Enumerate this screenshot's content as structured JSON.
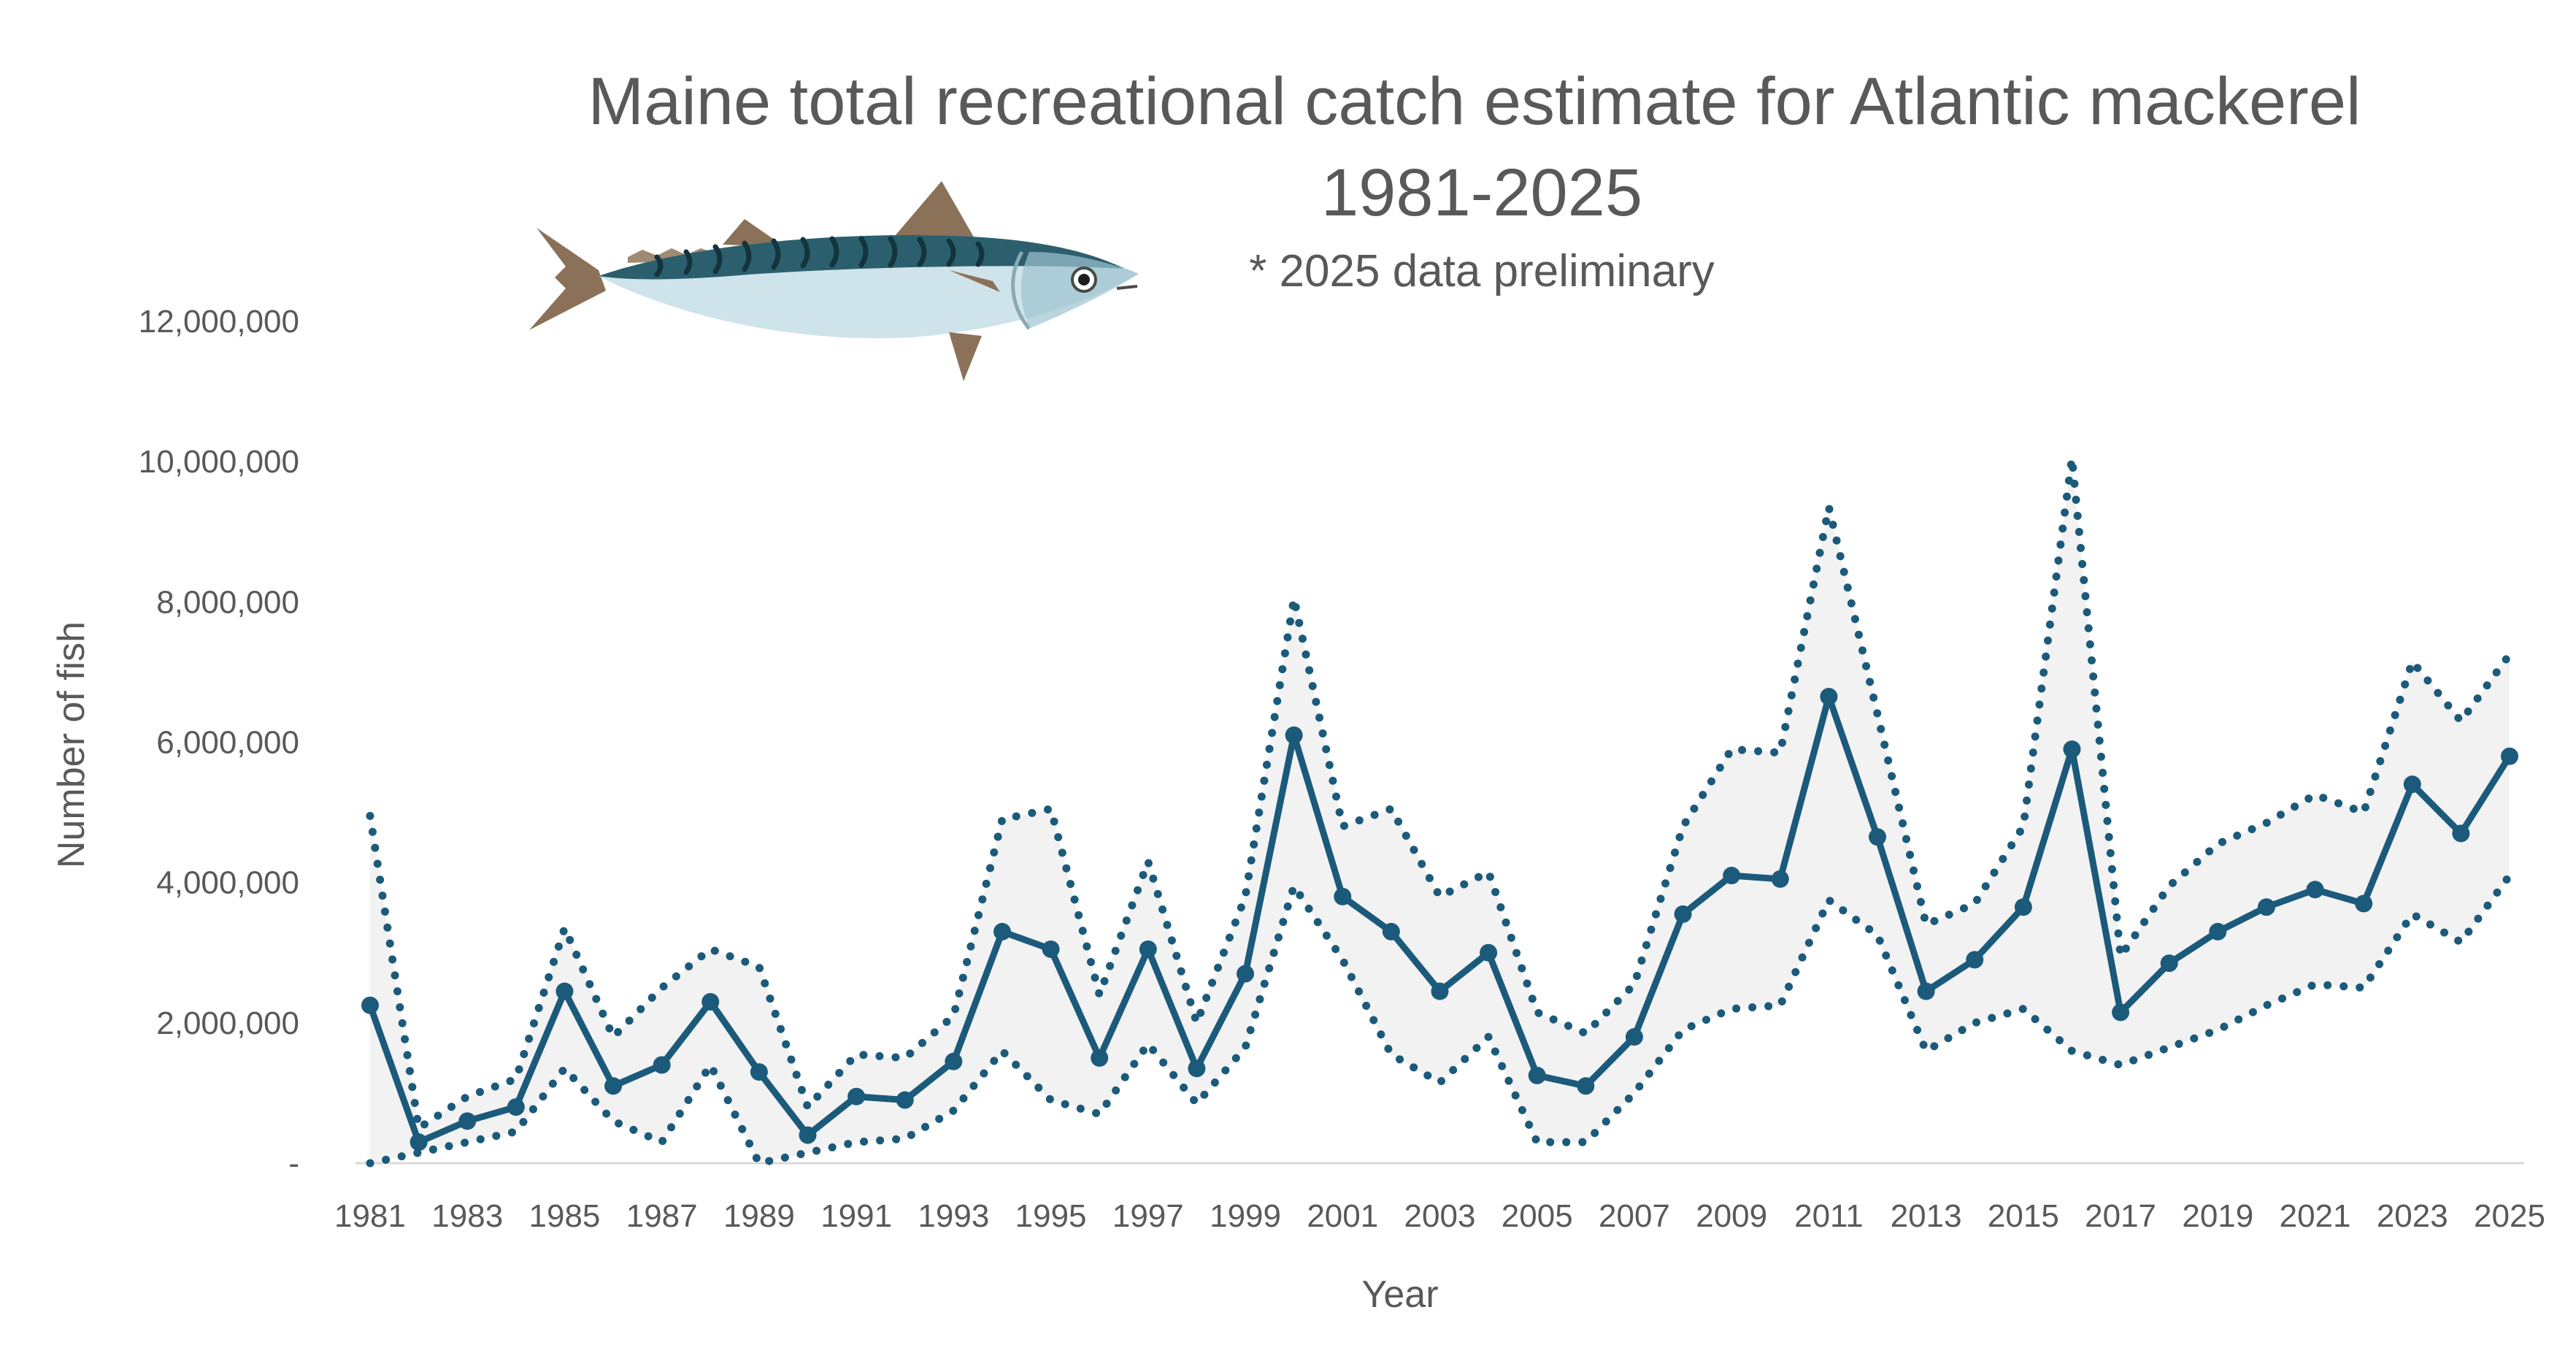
{
  "chart_data": {
    "type": "line",
    "title": "Maine total recreational catch estimate for Atlantic mackerel",
    "title_line2": "1981-2025",
    "subtitle": "* 2025 data preliminary",
    "xlabel": "Year",
    "ylabel": "Number of fish",
    "ylim": [
      0,
      12000000
    ],
    "y_ticks": [
      0,
      2000000,
      4000000,
      6000000,
      8000000,
      10000000,
      12000000
    ],
    "y_tick_labels": [
      "-",
      "2,000,000",
      "4,000,000",
      "6,000,000",
      "8,000,000",
      "10,000,000",
      "12,000,000"
    ],
    "x_tick_labels": [
      "1981",
      "1983",
      "1985",
      "1987",
      "1989",
      "1991",
      "1993",
      "1995",
      "1997",
      "1999",
      "2001",
      "2003",
      "2005",
      "2007",
      "2009",
      "2011",
      "2013",
      "2015",
      "2017",
      "2019",
      "2021",
      "2023",
      "2025"
    ],
    "legend": "none",
    "grid": false,
    "x": [
      1981,
      1982,
      1983,
      1984,
      1985,
      1986,
      1987,
      1988,
      1989,
      1990,
      1991,
      1992,
      1993,
      1994,
      1995,
      1996,
      1997,
      1998,
      1999,
      2000,
      2001,
      2002,
      2003,
      2004,
      2005,
      2006,
      2007,
      2008,
      2009,
      2010,
      2011,
      2012,
      2013,
      2014,
      2015,
      2016,
      2017,
      2018,
      2019,
      2020,
      2021,
      2022,
      2023,
      2024,
      2025
    ],
    "series": [
      {
        "role": "estimate",
        "style": "solid",
        "color": "#1b5a7a",
        "values": [
          2250000,
          300000,
          600000,
          800000,
          2450000,
          1100000,
          1400000,
          2300000,
          1300000,
          400000,
          950000,
          900000,
          1450000,
          3300000,
          3050000,
          1500000,
          3050000,
          1350000,
          2700000,
          6100000,
          3800000,
          3300000,
          2450000,
          3000000,
          1250000,
          1100000,
          1800000,
          3550000,
          4100000,
          4050000,
          6650000,
          4650000,
          2450000,
          2900000,
          3650000,
          5900000,
          2150000,
          2850000,
          3300000,
          3650000,
          3900000,
          3700000,
          5400000,
          4700000,
          5800000
        ]
      },
      {
        "role": "upper-bound",
        "style": "dotted",
        "color": "#1b5a7a",
        "values": [
          4950000,
          500000,
          950000,
          1200000,
          3350000,
          1800000,
          2500000,
          3050000,
          2800000,
          800000,
          1550000,
          1500000,
          2100000,
          4900000,
          5050000,
          2400000,
          4300000,
          2000000,
          3800000,
          8050000,
          4800000,
          5050000,
          3800000,
          4150000,
          2150000,
          1850000,
          2550000,
          4800000,
          5900000,
          5850000,
          9350000,
          6400000,
          3400000,
          3700000,
          4800000,
          10050000,
          2950000,
          3950000,
          4550000,
          4850000,
          5250000,
          5000000,
          7150000,
          6300000,
          7250000
        ]
      },
      {
        "role": "lower-bound",
        "style": "dotted",
        "color": "#1b5a7a",
        "values": [
          0,
          150000,
          300000,
          450000,
          1350000,
          600000,
          300000,
          1400000,
          0,
          150000,
          300000,
          350000,
          750000,
          1600000,
          900000,
          700000,
          1700000,
          850000,
          1650000,
          3950000,
          2900000,
          1550000,
          1150000,
          1800000,
          300000,
          300000,
          1000000,
          1900000,
          2200000,
          2250000,
          3750000,
          3250000,
          1600000,
          2000000,
          2200000,
          1600000,
          1400000,
          1650000,
          1900000,
          2250000,
          2550000,
          2500000,
          3550000,
          3150000,
          4100000
        ]
      }
    ],
    "band_fill": "#f2f2f2",
    "axis_color": "#d9d9d9",
    "text_color": "#595959"
  },
  "illustration": {
    "icon": "atlantic-mackerel-fish-icon",
    "body_color": "#cfe3ea",
    "back_color": "#2c5f6e",
    "fin_color": "#8a7158"
  }
}
